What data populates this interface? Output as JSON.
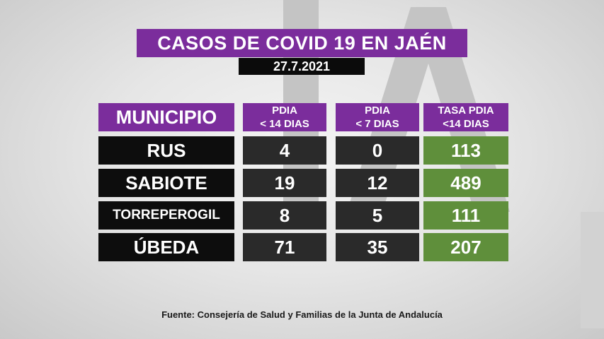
{
  "title": "CASOS DE COVID 19 EN JAÉN",
  "date": "27.7.2021",
  "headers": {
    "municipio": "MUNICIPIO",
    "pdia14": [
      "PDIA",
      "< 14 DIAS"
    ],
    "pdia7": [
      "PDIA",
      "< 7 DIAS"
    ],
    "tasa": [
      "TASA PDIA",
      "<14 DIAS"
    ]
  },
  "rows": [
    {
      "municipio": "RUS",
      "pdia14": "4",
      "pdia7": "0",
      "tasa": "113"
    },
    {
      "municipio": "SABIOTE",
      "pdia14": "19",
      "pdia7": "12",
      "tasa": "489"
    },
    {
      "municipio": "TORREPEROGIL",
      "pdia14": "8",
      "pdia7": "5",
      "tasa": "111"
    },
    {
      "municipio": "ÚBEDA",
      "pdia14": "71",
      "pdia7": "35",
      "tasa": "207"
    }
  ],
  "source": "Fuente:  Consejería de Salud y Familias de la Junta de Andalucía",
  "colors": {
    "header": "#7b2d9c",
    "name": "#0d0d0d",
    "value": "#2a2a2a",
    "rate": "#5f8f3b"
  }
}
